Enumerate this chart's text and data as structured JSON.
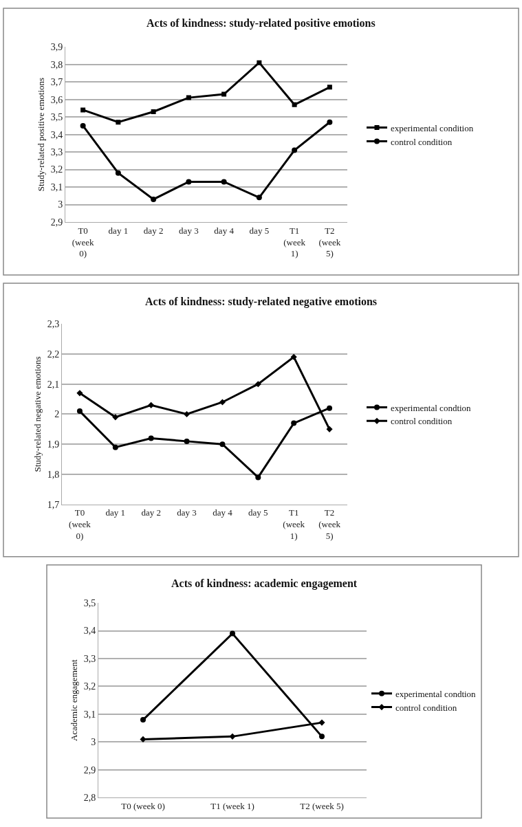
{
  "chart_data": [
    {
      "type": "line",
      "title": "Acts of kindness: study-related positive emotions",
      "ylabel": "Study-related positive emotions",
      "categories": [
        "T0 (week 0)",
        "day 1",
        "day 2",
        "day 3",
        "day 4",
        "day 5",
        "T1 (week 1)",
        "T2 (week 5)"
      ],
      "series": [
        {
          "name": "experimental condition",
          "color": "#000000",
          "marker": "square",
          "values": [
            3.54,
            3.47,
            3.53,
            3.61,
            3.63,
            3.81,
            3.57,
            3.67
          ]
        },
        {
          "name": "control condition",
          "color": "#000000",
          "marker": "circle",
          "values": [
            3.45,
            3.18,
            3.03,
            3.13,
            3.13,
            3.04,
            3.31,
            3.47
          ]
        }
      ],
      "ylim": [
        2.9,
        3.9
      ],
      "yticks": [
        {
          "value": 2.9,
          "label": "2,9"
        },
        3,
        {
          "value": 3.1,
          "label": "3,1"
        },
        {
          "value": 3.2,
          "label": "3,2"
        },
        {
          "value": 3.3,
          "label": "3,3"
        },
        {
          "value": 3.4,
          "label": "3,4"
        },
        {
          "value": 3.5,
          "label": "3,5"
        },
        {
          "value": 3.6,
          "label": "3,6"
        },
        {
          "value": 3.7,
          "label": "3,7"
        },
        {
          "value": 3.8,
          "label": "3,8"
        },
        {
          "value": 3.9,
          "label": "3,9"
        }
      ],
      "grid": "y",
      "legend": "right"
    },
    {
      "type": "line",
      "title": "Acts of kindness: study-related negative emotions",
      "ylabel": "Study-related negative emotions",
      "categories": [
        "T0 (week 0)",
        "day 1",
        "day 2",
        "day 3",
        "day 4",
        "day 5",
        "T1 (week 1)",
        "T2 (week 5)"
      ],
      "series": [
        {
          "name": "experimental condtion",
          "color": "#000000",
          "marker": "circle",
          "values": [
            2.01,
            1.89,
            1.92,
            1.91,
            1.9,
            1.79,
            1.97,
            2.02
          ]
        },
        {
          "name": "control condition",
          "color": "#000000",
          "marker": "diamond",
          "values": [
            2.07,
            1.99,
            2.03,
            2.0,
            2.04,
            2.1,
            2.19,
            1.95
          ]
        }
      ],
      "ylim": [
        1.7,
        2.3
      ],
      "yticks": [
        {
          "value": 1.7,
          "label": "1,7"
        },
        {
          "value": 1.8,
          "label": "1,8"
        },
        {
          "value": 1.9,
          "label": "1,9"
        },
        2,
        {
          "value": 2.1,
          "label": "2,1"
        },
        {
          "value": 2.2,
          "label": "2,2"
        },
        {
          "value": 2.3,
          "label": "2,3"
        }
      ],
      "grid": "y",
      "legend": "right"
    },
    {
      "type": "line",
      "title": "Acts of kindness: academic engagement",
      "ylabel": "Academic engagement",
      "categories": [
        "T0 (week 0)",
        "T1 (week 1)",
        "T2 (week 5)"
      ],
      "series": [
        {
          "name": "experimental condtion",
          "color": "#000000",
          "marker": "circle",
          "values": [
            3.08,
            3.39,
            3.02
          ]
        },
        {
          "name": "control condition",
          "color": "#000000",
          "marker": "diamond",
          "values": [
            3.01,
            3.02,
            3.07
          ]
        }
      ],
      "ylim": [
        2.8,
        3.5
      ],
      "yticks": [
        {
          "value": 2.8,
          "label": "2,8"
        },
        {
          "value": 2.9,
          "label": "2,9"
        },
        3,
        {
          "value": 3.1,
          "label": "3,1"
        },
        {
          "value": 3.2,
          "label": "3,2"
        },
        {
          "value": 3.3,
          "label": "3,3"
        },
        {
          "value": 3.4,
          "label": "3,4"
        },
        {
          "value": 3.5,
          "label": "3,5"
        }
      ],
      "grid": "y",
      "legend": "right"
    }
  ]
}
